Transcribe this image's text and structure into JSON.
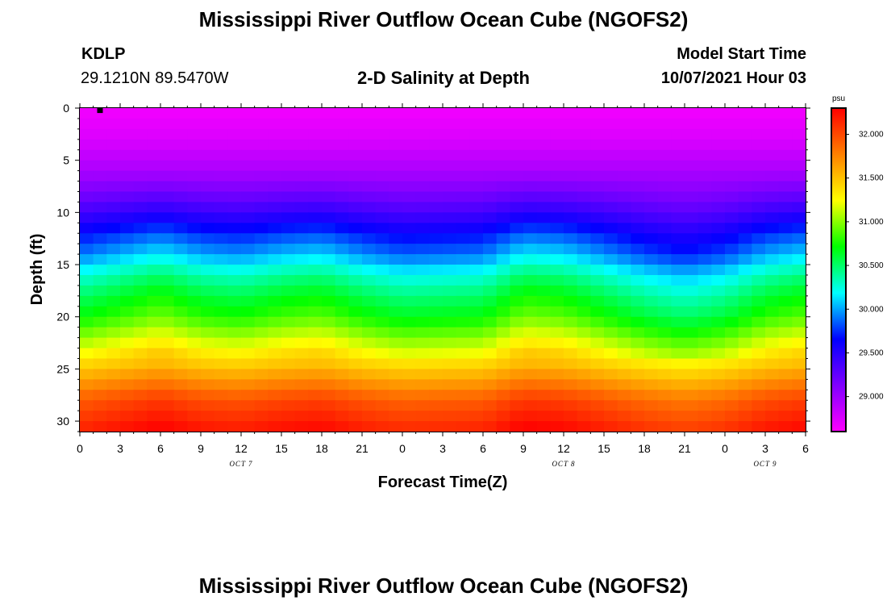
{
  "page": {
    "title_top": "Mississippi River Outflow Ocean Cube (NGOFS2)",
    "title_bottom": "Mississippi River Outflow Ocean Cube (NGOFS2)",
    "station_id": "KDLP",
    "coordinates": "29.1210N  89.5470W",
    "subtitle": "2-D Salinity at Depth",
    "model_start_label": "Model Start Time",
    "model_start_value": "10/07/2021 Hour 03"
  },
  "chart_data": {
    "type": "heatmap",
    "title": "2-D Salinity at Depth",
    "xlabel": "Forecast Time(Z)",
    "ylabel": "Depth (ft)",
    "x_range_hours": [
      0,
      54
    ],
    "x_tick_labels": [
      "0",
      "3",
      "6",
      "9",
      "12",
      "15",
      "18",
      "21",
      "0",
      "3",
      "6",
      "9",
      "12",
      "15",
      "18",
      "21",
      "0",
      "3",
      "6"
    ],
    "x_day_labels": [
      {
        "label": "OCT 7",
        "hour": 12
      },
      {
        "label": "OCT 8",
        "hour": 36
      },
      {
        "label": "OCT 9",
        "hour": 51
      }
    ],
    "ylim": [
      0,
      31
    ],
    "y_inverted": true,
    "y_tick_labels": [
      "0",
      "5",
      "10",
      "15",
      "20",
      "25",
      "30"
    ],
    "colorbar": {
      "unit": "psu",
      "range": [
        28.6,
        32.3
      ],
      "tick_labels": [
        "29.000",
        "29.500",
        "30.000",
        "30.500",
        "31.000",
        "31.500",
        "32.000"
      ],
      "colors": [
        "#ff00ff",
        "#8000ff",
        "#0000ff",
        "#00ffff",
        "#00ff00",
        "#ffff00",
        "#ff8000",
        "#ff0000"
      ]
    },
    "depth_profile": {
      "depth_ft": [
        0,
        3,
        6,
        8,
        10,
        12,
        14,
        16,
        18,
        20,
        22,
        24,
        26,
        28,
        31
      ],
      "salinity_psu": [
        28.65,
        28.75,
        28.95,
        29.15,
        29.4,
        29.7,
        29.95,
        30.3,
        30.55,
        30.75,
        31.05,
        31.35,
        31.65,
        31.95,
        32.2
      ]
    },
    "temporal_modulation": {
      "hours": [
        0,
        6,
        9,
        12,
        15,
        18,
        21,
        24,
        30,
        33,
        36,
        39,
        42,
        45,
        48,
        51,
        54
      ],
      "salinity_offset_psu": [
        -0.05,
        0.2,
        0.05,
        0.0,
        0.1,
        0.15,
        0.0,
        -0.1,
        -0.05,
        0.2,
        0.15,
        0.0,
        -0.15,
        -0.25,
        -0.15,
        0.05,
        0.15
      ]
    },
    "station_marker": {
      "hour": 1.5,
      "depth_ft": 0.2
    }
  }
}
